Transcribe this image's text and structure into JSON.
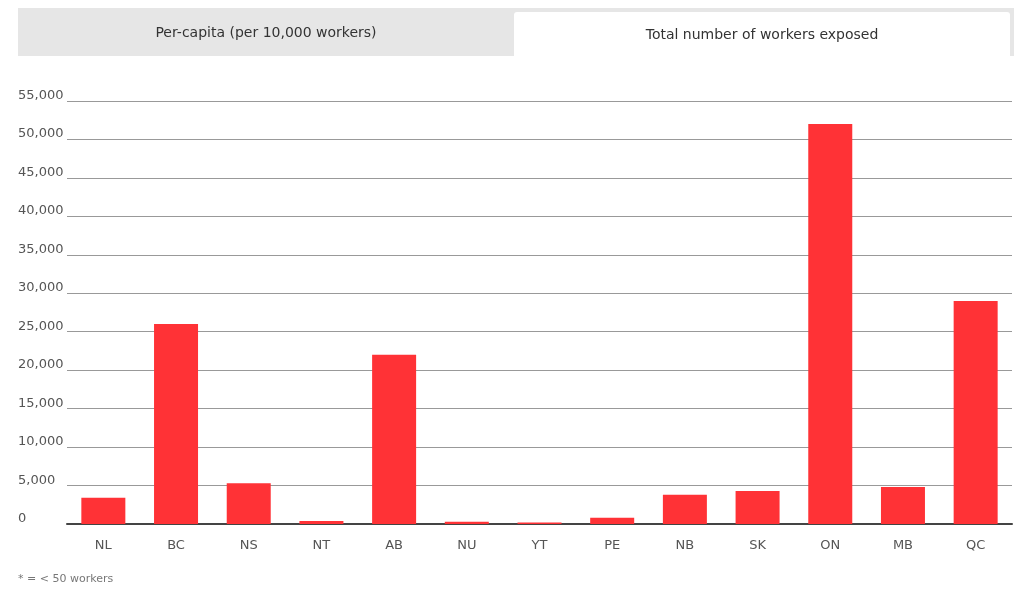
{
  "chart_data": {
    "type": "bar",
    "categories": [
      "NL",
      "BC",
      "NS",
      "NT",
      "AB",
      "NU",
      "YT",
      "PE",
      "NB",
      "SK",
      "ON",
      "MB",
      "QC"
    ],
    "values": [
      3400,
      26000,
      5300,
      400,
      22000,
      300,
      200,
      800,
      3800,
      4300,
      52000,
      4800,
      29000
    ],
    "color": "#ff3236",
    "ylim": [
      0,
      55000
    ],
    "yticks": [
      0,
      {
        "value": 5000,
        "label": "5,000"
      },
      {
        "value": 10000,
        "label": "10,000"
      },
      {
        "value": 15000,
        "label": "15,000"
      },
      {
        "value": 20000,
        "label": "20,000"
      },
      {
        "value": 25000,
        "label": "25,000"
      },
      {
        "value": 30000,
        "label": "30,000"
      },
      {
        "value": 35000,
        "label": "35,000"
      },
      {
        "value": 40000,
        "label": "40,000"
      },
      {
        "value": 45000,
        "label": "45,000"
      },
      {
        "value": 50000,
        "label": "50,000"
      },
      {
        "value": 55000,
        "label": "55,000"
      }
    ],
    "grid": "y",
    "annotations": [
      "Per-capita (per 10,000 workers)",
      "Total number of workers exposed",
      "* = < 50 workers"
    ]
  }
}
